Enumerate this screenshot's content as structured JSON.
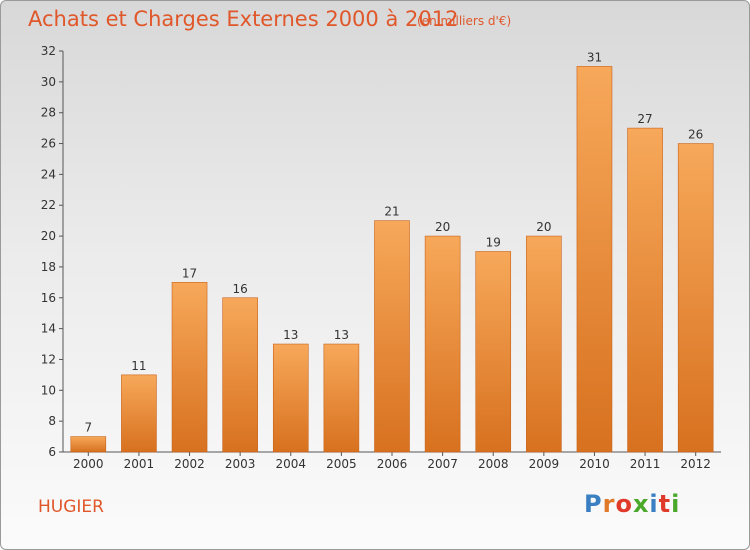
{
  "title": "Achats et Charges Externes 2000 à 2012",
  "unit": "(en milliers d'€)",
  "commune": "HUGIER",
  "logo": {
    "text": "Proxiti",
    "letters": [
      "P",
      "r",
      "o",
      "x",
      "i",
      "t",
      "i"
    ],
    "colors": [
      "#3a7fc1",
      "#e07a2a",
      "#e03a2a",
      "#4aa82a",
      "#3a7fc1",
      "#e03a2a",
      "#4aa82a"
    ]
  },
  "chart_data": {
    "type": "bar",
    "categories": [
      "2000",
      "2001",
      "2002",
      "2003",
      "2004",
      "2005",
      "2006",
      "2007",
      "2008",
      "2009",
      "2010",
      "2011",
      "2012"
    ],
    "values": [
      7,
      11,
      17,
      16,
      13,
      13,
      21,
      20,
      19,
      20,
      31,
      27,
      26
    ],
    "ylim": [
      6,
      32
    ],
    "yticks": [
      6,
      8,
      10,
      12,
      14,
      16,
      18,
      20,
      22,
      24,
      26,
      28,
      30,
      32
    ],
    "grid": false,
    "bar_color_top": "#f7a85a",
    "bar_color_bottom": "#d7711f",
    "title": "Achats et Charges Externes 2000 à 2012",
    "xlabel": "",
    "ylabel": ""
  }
}
